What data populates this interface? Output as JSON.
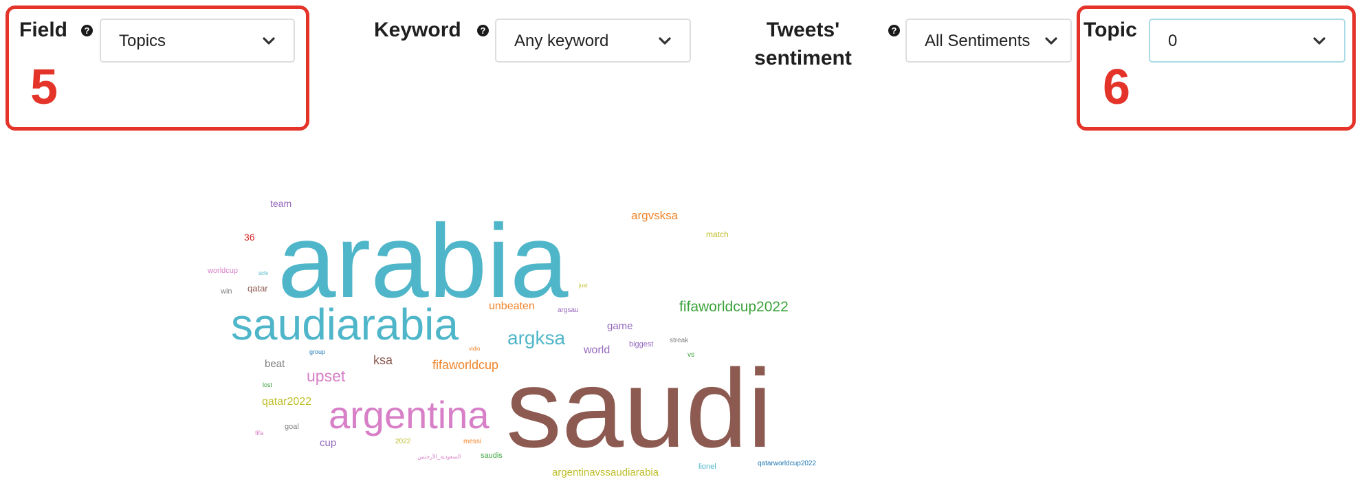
{
  "filters": {
    "field": {
      "label": "Field",
      "help": "?",
      "value": "Topics"
    },
    "keyword": {
      "label": "Keyword",
      "help": "?",
      "value": "Any keyword"
    },
    "sentiment": {
      "label_line1": "Tweets'",
      "label_line2": "sentiment",
      "help": "?",
      "value": "All Sentiments"
    },
    "topic": {
      "label": "Topic",
      "value": "0"
    }
  },
  "annotations": {
    "field_number": "5",
    "topic_number": "6",
    "color": "#e4342a"
  },
  "icons": {
    "help": "question-circle-icon",
    "dropdown": "chevron-down-icon"
  },
  "wordcloud": {
    "words": [
      {
        "text": "arabia",
        "color": "#4fb6c9"
      },
      {
        "text": "saudi",
        "color": "#8c5a50"
      },
      {
        "text": "saudiarabia",
        "color": "#4fb6c9"
      },
      {
        "text": "argentina",
        "color": "#d77fc7"
      },
      {
        "text": "fifaworldcup2022",
        "color": "#3aa23a"
      },
      {
        "text": "argksa",
        "color": "#4fb6c9"
      },
      {
        "text": "argvsksa",
        "color": "#f0842c"
      },
      {
        "text": "unbeaten",
        "color": "#f0842c"
      },
      {
        "text": "fifaworldcup",
        "color": "#f0842c"
      },
      {
        "text": "upset",
        "color": "#d77fc7"
      },
      {
        "text": "ksa",
        "color": "#8c5a50"
      },
      {
        "text": "qatar2022",
        "color": "#bdbd2a"
      },
      {
        "text": "argentinavssaudiarabia",
        "color": "#bdbd2a"
      },
      {
        "text": "team",
        "color": "#9467bd"
      },
      {
        "text": "36",
        "color": "#d62728"
      },
      {
        "text": "match",
        "color": "#bdbd2a"
      },
      {
        "text": "game",
        "color": "#9467bd"
      },
      {
        "text": "world",
        "color": "#9467bd"
      },
      {
        "text": "biggest",
        "color": "#9467bd"
      },
      {
        "text": "worldcup",
        "color": "#d77fc7"
      },
      {
        "text": "qatar",
        "color": "#8c5a50"
      },
      {
        "text": "win",
        "color": "#7f7f7f"
      },
      {
        "text": "sctv",
        "color": "#4fb6c9"
      },
      {
        "text": "just",
        "color": "#bdbd2a"
      },
      {
        "text": "argsau",
        "color": "#9467bd"
      },
      {
        "text": "streak",
        "color": "#7f7f7f"
      },
      {
        "text": "vs",
        "color": "#3aa23a"
      },
      {
        "text": "beat",
        "color": "#7f7f7f"
      },
      {
        "text": "group",
        "color": "#1f77b4"
      },
      {
        "text": "vidio",
        "color": "#f0842c"
      },
      {
        "text": "lost",
        "color": "#3aa23a"
      },
      {
        "text": "goal",
        "color": "#7f7f7f"
      },
      {
        "text": "fifa",
        "color": "#d77fc7"
      },
      {
        "text": "cup",
        "color": "#9467bd"
      },
      {
        "text": "2022",
        "color": "#bdbd2a"
      },
      {
        "text": "messi",
        "color": "#f0842c"
      },
      {
        "text": "saudis",
        "color": "#3aa23a"
      },
      {
        "text": "السعودية_الأرجنتين",
        "color": "#d77fc7"
      },
      {
        "text": "lionel",
        "color": "#4fb6c9"
      },
      {
        "text": "qatarworldcup2022",
        "color": "#1f77b4"
      }
    ]
  }
}
